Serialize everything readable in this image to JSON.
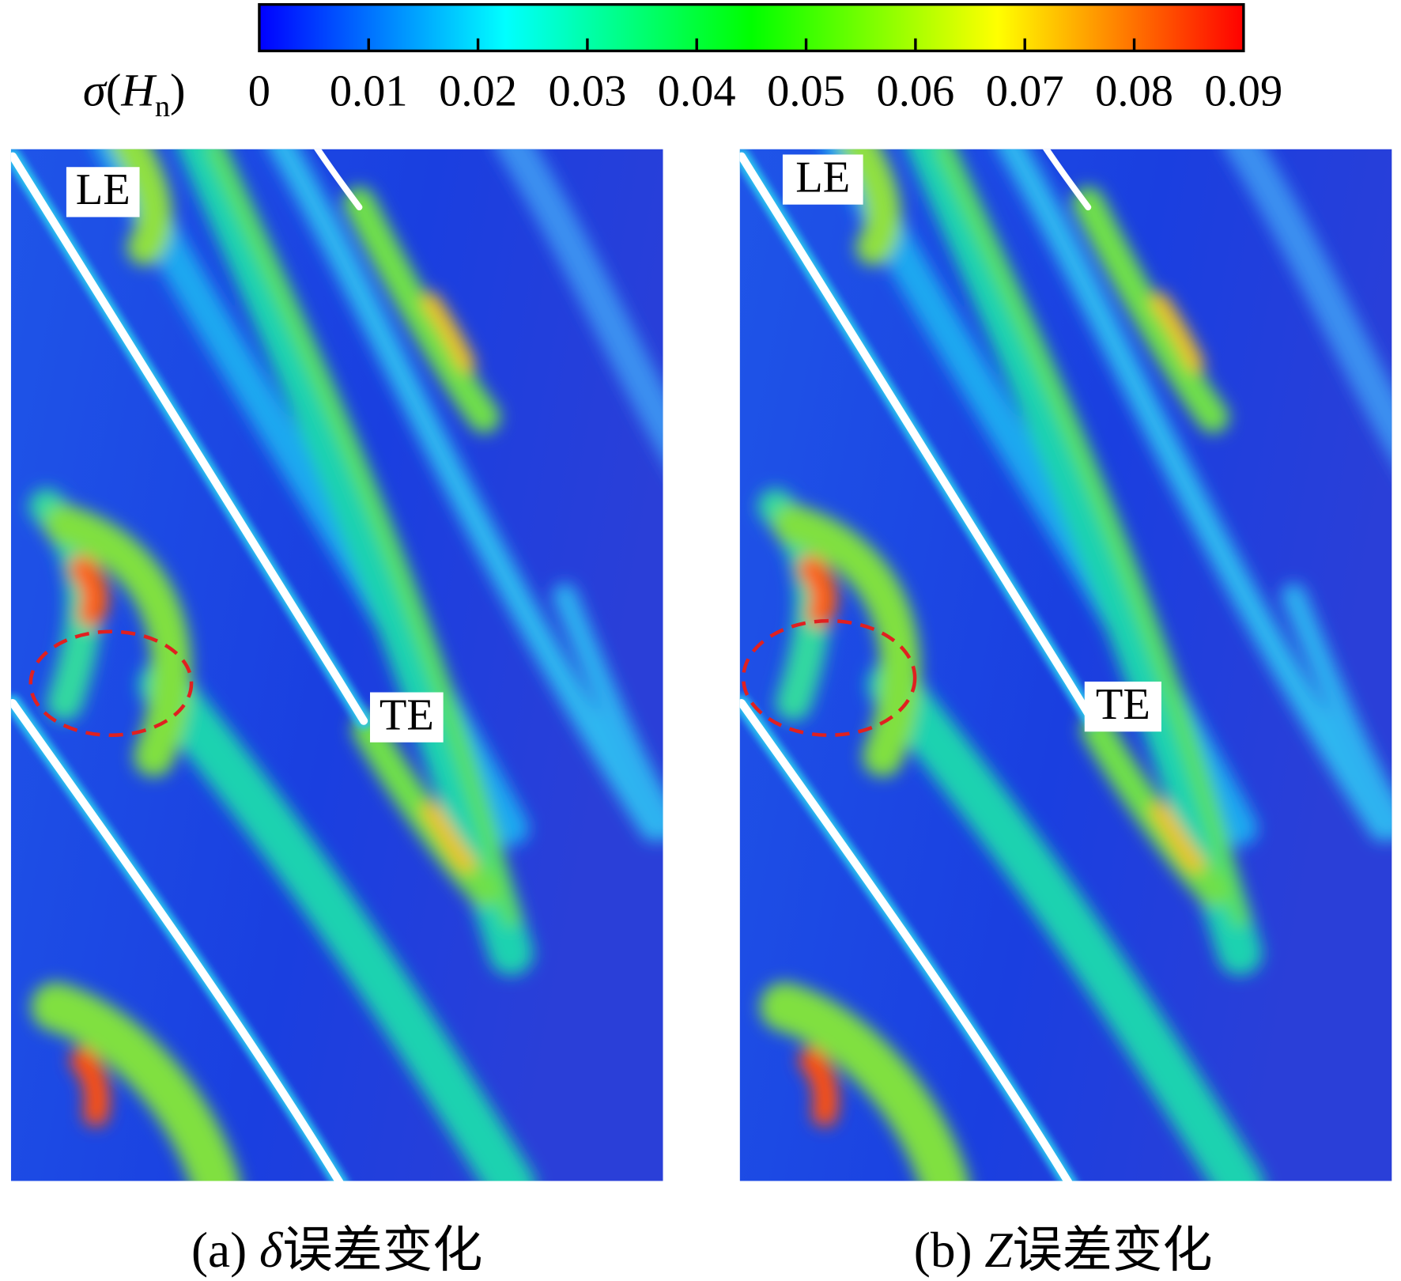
{
  "chart_data": {
    "type": "heatmap",
    "colorbar": {
      "label_parts": [
        "σ",
        "(",
        "H",
        "n",
        ")"
      ],
      "clim": [
        0,
        0.09
      ],
      "ticks": [
        0,
        0.01,
        0.02,
        0.03,
        0.04,
        0.05,
        0.06,
        0.07,
        0.08,
        0.09
      ],
      "colormap": [
        "#0000ff",
        "#00ffff",
        "#00ff00",
        "#ffff00",
        "#ff0000"
      ]
    },
    "panels": [
      {
        "caption": [
          "(a)",
          "δ",
          "误差变化"
        ],
        "annotations": [
          "LE",
          "TE"
        ]
      },
      {
        "caption": [
          "(b)",
          "Z",
          "误差变化"
        ],
        "annotations": [
          "LE",
          "TE"
        ]
      }
    ]
  }
}
